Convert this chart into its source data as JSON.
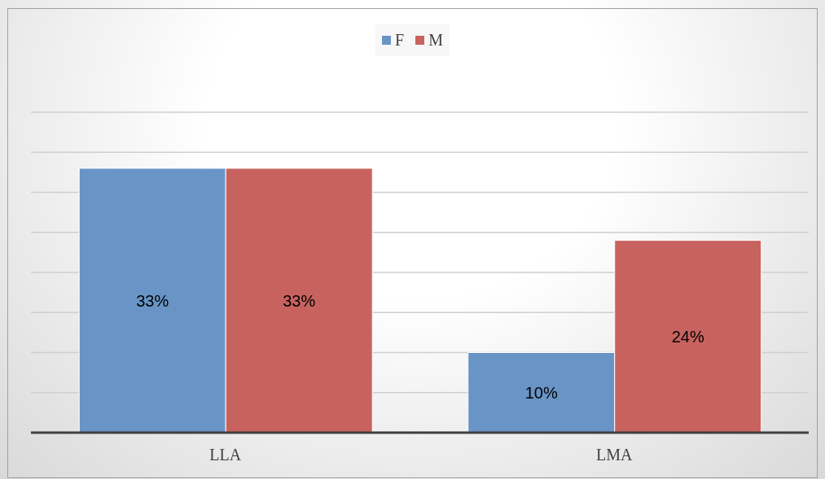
{
  "chart_data": {
    "type": "bar",
    "categories": [
      "LLA",
      "LMA"
    ],
    "series": [
      {
        "name": "F",
        "color": "#6894c6",
        "values": [
          33,
          10
        ],
        "value_labels": [
          "33%",
          "10%"
        ]
      },
      {
        "name": "M",
        "color": "#c8625f",
        "values": [
          33,
          24
        ],
        "value_labels": [
          "33%",
          "24%"
        ]
      }
    ],
    "tick_labels": "x",
    "grid": "y",
    "legend": "top"
  }
}
